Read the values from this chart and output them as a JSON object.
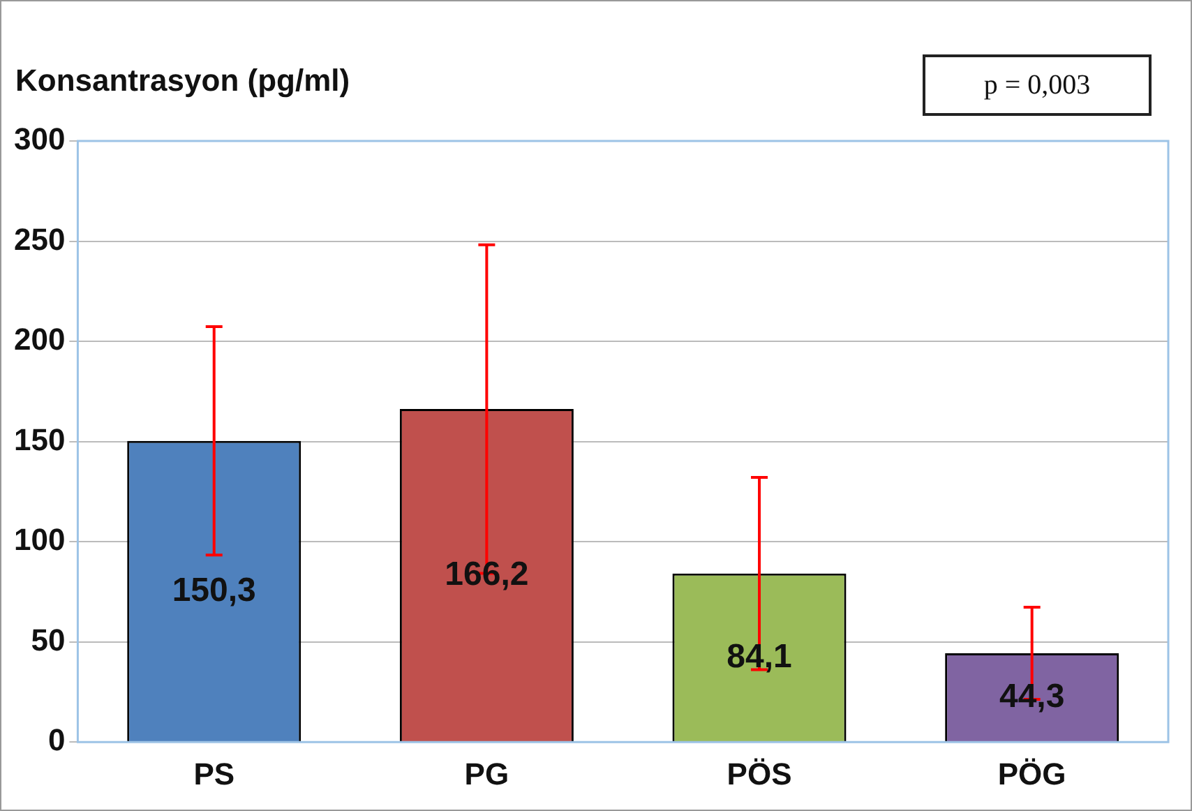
{
  "chart_data": {
    "type": "bar",
    "ylabel": "Konsantrasyon (pg/ml)",
    "categories": [
      "PS",
      "PG",
      "PÖS",
      "PÖG"
    ],
    "values": [
      150.3,
      166.2,
      84.1,
      44.3
    ],
    "colors": [
      "#4f81bd",
      "#c0504d",
      "#9bbb59",
      "#8064a2"
    ],
    "errors": [
      57,
      82,
      48,
      23
    ],
    "value_labels": [
      "150,3",
      "166,2",
      "84,1",
      "44,3"
    ],
    "annotations": [
      "p = 0,003"
    ],
    "ylim": [
      0,
      300
    ],
    "yticks": [
      0,
      50,
      100,
      150,
      200,
      250,
      300
    ],
    "grid": "y",
    "legend": false
  }
}
